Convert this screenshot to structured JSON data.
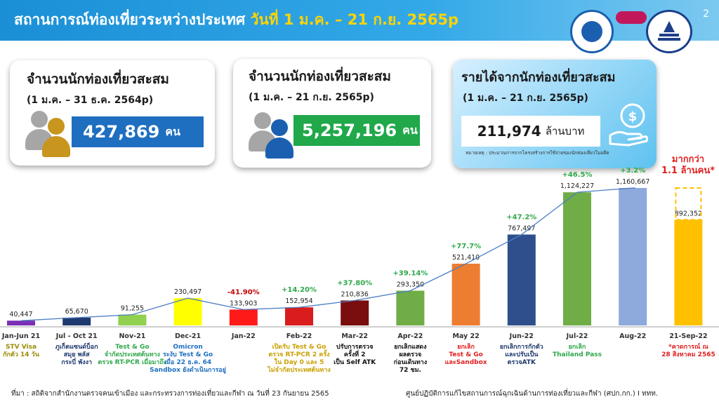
{
  "header": {
    "title_main": "สถานการณ์ท่องเที่ยวระหว่างประเทศ",
    "title_period": "วันที่ 1 ม.ค. – 21 ก.ย. 2565p",
    "page_number": "2"
  },
  "logos": [
    "ministry-seal-icon",
    "amazing-thailand-logo",
    "tat-logo"
  ],
  "cards": {
    "card_2021": {
      "title": "จำนวนนักท่องเที่ยวสะสม",
      "period": "(1 ม.ค. – 31 ธ.ค. 2564p)",
      "value": "427,869",
      "unit": "คน",
      "bar_color": "#1e6fc0"
    },
    "card_2022": {
      "title": "จำนวนนักท่องเที่ยวสะสม",
      "period": "(1 ม.ค. – 21 ก.ย. 2565p)",
      "value": "5,257,196",
      "unit": "คน",
      "bar_color": "#20a84a"
    },
    "revenue": {
      "title": "รายได้จากนักท่องเที่ยวสะสม",
      "period": "(1 ม.ค. – 21 ก.ย. 2565p)",
      "value": "211,974",
      "unit": "ล้านบาท",
      "note": "หมายเหตุ : ประมาณการจากโครงสร้างการใช้จ่ายของนักท่องเที่ยวในอดีต"
    }
  },
  "more_note": {
    "line1": "มากกว่า",
    "line2": "1.1 ล้านคน*"
  },
  "chart_data": {
    "type": "bar",
    "categories": [
      "Jan-Jun 21",
      "Jul - Oct 21",
      "Nov-21",
      "Dec-21",
      "Jan-22",
      "Feb-22",
      "Mar-22",
      "Apr-22",
      "May 22",
      "Jun-22",
      "Jul-22",
      "Aug-22",
      "21-Sep-22"
    ],
    "values": [
      40447,
      65670,
      91255,
      230497,
      133903,
      152954,
      210836,
      293350,
      521410,
      767497,
      1124227,
      1160667,
      892352
    ],
    "value_labels": [
      "40,447",
      "65,670",
      "91,255",
      "230,497",
      "133,903",
      "152,954",
      "210,836",
      "293,350",
      "521,410",
      "767,497",
      "1,124,227",
      "1,160,667",
      "892,352"
    ],
    "colors": [
      "#7b2fb5",
      "#1f3a6e",
      "#92d050",
      "#ffff00",
      "#ff1a1a",
      "#d91c1c",
      "#7a0d0d",
      "#70ad47",
      "#ed7d31",
      "#2e4f8c",
      "#70ad47",
      "#8ea9db",
      "#ffc000"
    ],
    "growth": [
      "",
      "",
      "",
      "",
      "-41.90%",
      "+14.20%",
      "+37.80%",
      "+39.14%",
      "+77.7%",
      "+47.2%",
      "+46.5%",
      "+3.2%",
      ""
    ],
    "growth_colors": [
      "",
      "",
      "",
      "",
      "#c00000",
      "#2ea84a",
      "#2ea84a",
      "#2ea84a",
      "#2ea84a",
      "#2ea84a",
      "#2ea84a",
      "#2ea84a",
      ""
    ],
    "annotations": [
      [
        "STV Visa",
        "กักตัว 14 วัน"
      ],
      [
        "ภูเก็ตแซนด์บ็อก",
        "สมุย พลัส",
        "กระบี่ พังงา"
      ],
      [
        "Test & Go",
        "จำกัดประเทศต้นทาง",
        "ตรวจ RT-PCR เมื่อมาถึง"
      ],
      [
        "Omicron",
        "ระงับ Test & Go",
        "เมื่อ 22 ธ.ค. 64",
        "Sandbox ยังดำเนินการอยู่"
      ],
      [],
      [
        "เปิดรับ Test & Go",
        "ตรวจ RT-PCR 2 ครั้ง",
        "ใน Day 0 และ 5",
        "ไม่จำกัดประเทศต้นทาง"
      ],
      [
        "ปรับการตรวจ",
        "ครั้งที่ 2",
        "เป็น Self ATK"
      ],
      [
        "ยกเลิกแสดง",
        "ผลตรวจ",
        "ก่อนเดินทาง",
        "72 ชม."
      ],
      [
        "ยกเลิก",
        "Test & Go",
        "และSandbox"
      ],
      [
        "ยกเลิกการกักตัว",
        "และปรับเป็น",
        "ตรวจATK"
      ],
      [
        "ยกเลิก",
        "Thailand Pass"
      ],
      [],
      [
        "*คาดการณ์ ณ",
        "28 สิงหาคม 2565"
      ]
    ],
    "annotation_colors": [
      "#9a8a00",
      "#1f3a6e",
      "#2ea84a",
      "#1e6fc0",
      "",
      "#c9a000",
      "#111111",
      "#111111",
      "#e02020",
      "#1f3a6e",
      "#2ea84a",
      "",
      "#e02020"
    ],
    "trend_line": true,
    "forecast_box": true
  },
  "footer": {
    "source": "ที่มา : สถิติจากสำนักงานตรวจคนเข้าเมือง และกระทรวงการท่องเที่ยวและกีฬา ณ วันที่ 23 กันยายน 2565",
    "center": "ศูนย์ปฏิบัติการแก้ไขสถานการณ์ฉุกเฉินด้านการท่องเที่ยวและกีฬา (ศปก.กก.) I ททท."
  }
}
